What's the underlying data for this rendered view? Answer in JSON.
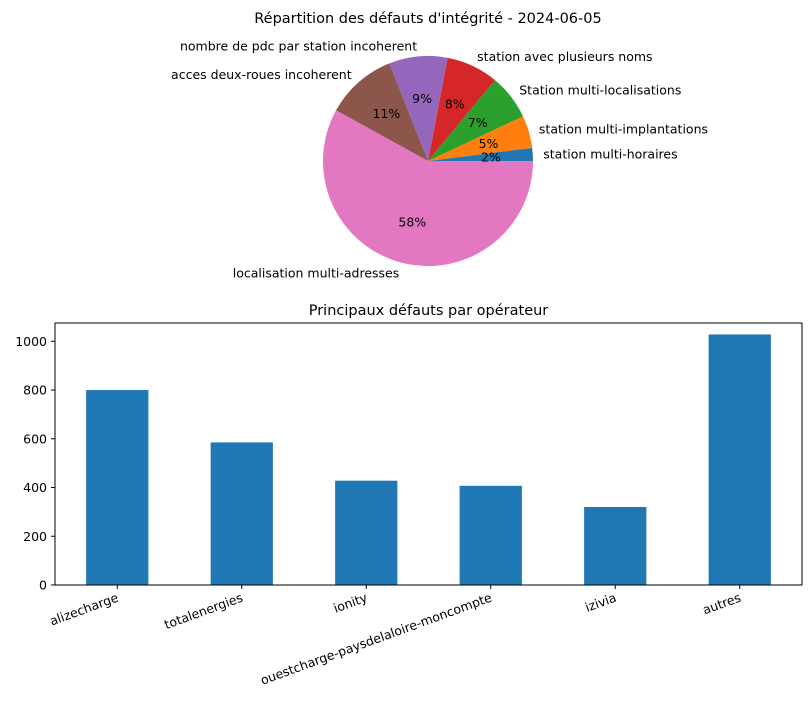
{
  "chart_data": [
    {
      "type": "pie",
      "title": "Répartition des défauts d'intégrité - 2024-06-05",
      "slices": [
        {
          "label": "station multi-horaires",
          "percent": 2,
          "pct_label": "2%",
          "color": "#1f77b4"
        },
        {
          "label": "station multi-implantations",
          "percent": 5,
          "pct_label": "5%",
          "color": "#ff7f0e"
        },
        {
          "label": "Station multi-localisations",
          "percent": 7,
          "pct_label": "7%",
          "color": "#2ca02c"
        },
        {
          "label": "station avec plusieurs noms",
          "percent": 8,
          "pct_label": "8%",
          "color": "#d62728"
        },
        {
          "label": "nombre de pdc par station incoherent",
          "percent": 9,
          "pct_label": "9%",
          "color": "#9467bd"
        },
        {
          "label": "acces deux-roues incoherent",
          "percent": 11,
          "pct_label": "11%",
          "color": "#8c564b"
        },
        {
          "label": "localisation multi-adresses",
          "percent": 58,
          "pct_label": "58%",
          "color": "#e377c2"
        }
      ]
    },
    {
      "type": "bar",
      "title": "Principaux défauts par opérateur",
      "categories": [
        "alizecharge",
        "totalenergies",
        "ionity",
        "ouestcharge-paysdelaloire-moncompte",
        "izivia",
        "autres"
      ],
      "values": [
        800,
        585,
        428,
        407,
        320,
        1028
      ],
      "color": "#1f77b4",
      "ylim": [
        0,
        1075
      ],
      "yticks": [
        0,
        200,
        400,
        600,
        800,
        1000
      ],
      "xlabel": "",
      "ylabel": ""
    }
  ]
}
